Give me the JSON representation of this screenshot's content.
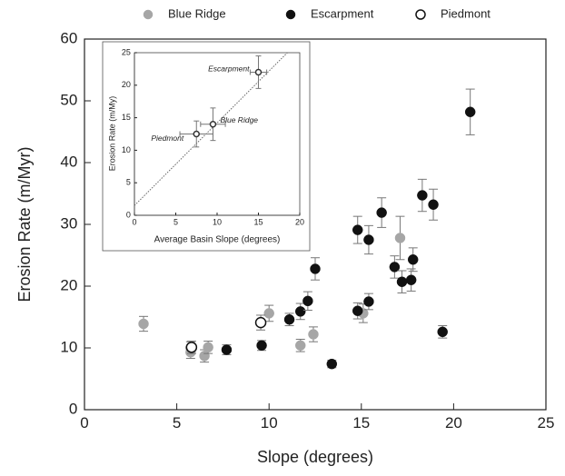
{
  "chart_data": [
    {
      "type": "scatter",
      "xlabel": "Slope (degrees)",
      "ylabel": "Erosion Rate (m/Myr)",
      "xlim": [
        0,
        25
      ],
      "ylim": [
        0,
        60
      ],
      "xticks": [
        0,
        5,
        10,
        15,
        20,
        25
      ],
      "yticks": [
        0,
        10,
        20,
        30,
        40,
        50,
        60
      ],
      "series": [
        {
          "name": "Blue Ridge",
          "color": "#a6a6a6",
          "marker": "filled",
          "x": [
            3.2,
            5.75,
            5.75,
            6.5,
            6.7,
            10.0,
            11.7,
            12.4,
            15.1,
            17.1
          ],
          "values": [
            13.9,
            10.0,
            9.3,
            8.7,
            10.1,
            15.6,
            10.4,
            12.2,
            15.6,
            27.8
          ],
          "yerr": [
            1.2,
            1.0,
            1.0,
            1.0,
            1.0,
            1.3,
            1.0,
            1.2,
            1.5,
            3.5
          ]
        },
        {
          "name": "Escarpment",
          "color": "#111111",
          "marker": "filled",
          "x": [
            7.7,
            9.6,
            11.1,
            11.7,
            12.1,
            12.5,
            13.4,
            14.8,
            14.8,
            15.4,
            15.4,
            16.1,
            16.8,
            17.2,
            17.7,
            17.8,
            18.3,
            18.9,
            19.4,
            20.9
          ],
          "values": [
            9.7,
            10.4,
            14.6,
            15.9,
            17.6,
            22.8,
            7.4,
            29.1,
            16.0,
            27.5,
            17.5,
            31.9,
            23.1,
            20.7,
            21.0,
            24.3,
            34.7,
            33.2,
            12.6,
            48.2
          ],
          "yerr": [
            0.8,
            0.8,
            1.0,
            1.3,
            1.5,
            1.8,
            0.6,
            2.2,
            1.3,
            2.3,
            1.3,
            2.4,
            1.8,
            1.8,
            1.8,
            1.9,
            2.6,
            2.5,
            1.0,
            3.7
          ]
        },
        {
          "name": "Piedmont",
          "color": "#111111",
          "marker": "open",
          "x": [
            5.8,
            9.55
          ],
          "values": [
            10.1,
            14.1
          ],
          "yerr": [
            1.0,
            1.2
          ]
        }
      ]
    },
    {
      "type": "scatter",
      "xlabel": "Average Basin Slope (degrees)",
      "ylabel": "Erosion Rate (m/My)",
      "xlim": [
        0,
        20
      ],
      "ylim": [
        0,
        25
      ],
      "xticks": [
        0,
        5,
        10,
        15,
        20
      ],
      "yticks": [
        0,
        5,
        10,
        15,
        20,
        25
      ],
      "trend": {
        "x": [
          0,
          18.5
        ],
        "y": [
          1.5,
          25
        ]
      },
      "series": [
        {
          "name": "Escarpment",
          "color": "#333333",
          "marker": "open",
          "x": [
            15.0
          ],
          "values": [
            22.0
          ],
          "xerr": [
            1.0
          ],
          "yerr": [
            2.5
          ]
        },
        {
          "name": "Blue Ridge",
          "color": "#333333",
          "marker": "open",
          "x": [
            9.5
          ],
          "values": [
            14.0
          ],
          "xerr": [
            1.5
          ],
          "yerr": [
            2.5
          ]
        },
        {
          "name": "Piedmont",
          "color": "#333333",
          "marker": "open",
          "x": [
            7.5
          ],
          "values": [
            12.5
          ],
          "xerr": [
            2.0
          ],
          "yerr": [
            2.0
          ]
        }
      ]
    }
  ]
}
